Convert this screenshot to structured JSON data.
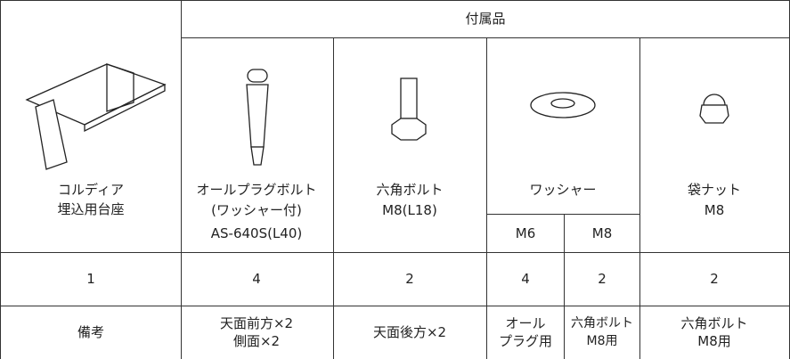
{
  "table": {
    "group_header": "付属品",
    "columns": [
      {
        "name": [
          "コルディア",
          "埋込用台座"
        ]
      },
      {
        "name": [
          "オールプラグボルト",
          "(ワッシャー付)",
          "AS-640S(L40)"
        ]
      },
      {
        "name": [
          "六角ボルト",
          "M8(L18)"
        ]
      },
      {
        "name": [
          "ワッシャー"
        ],
        "sizes": [
          "M6",
          "M8"
        ]
      },
      {
        "name": [
          "袋ナット",
          "M8"
        ]
      }
    ],
    "quantity_row": [
      1,
      4,
      2,
      4,
      2,
      2
    ],
    "remarks_row": {
      "label": "備考",
      "cells": [
        [
          "天面前方×2",
          "側面×2"
        ],
        [
          "天面後方×2"
        ],
        [
          "オール",
          "プラグ用"
        ],
        [
          "六角ボルト",
          "M8用"
        ],
        [
          "六角ボルト",
          "M8用"
        ]
      ]
    }
  }
}
